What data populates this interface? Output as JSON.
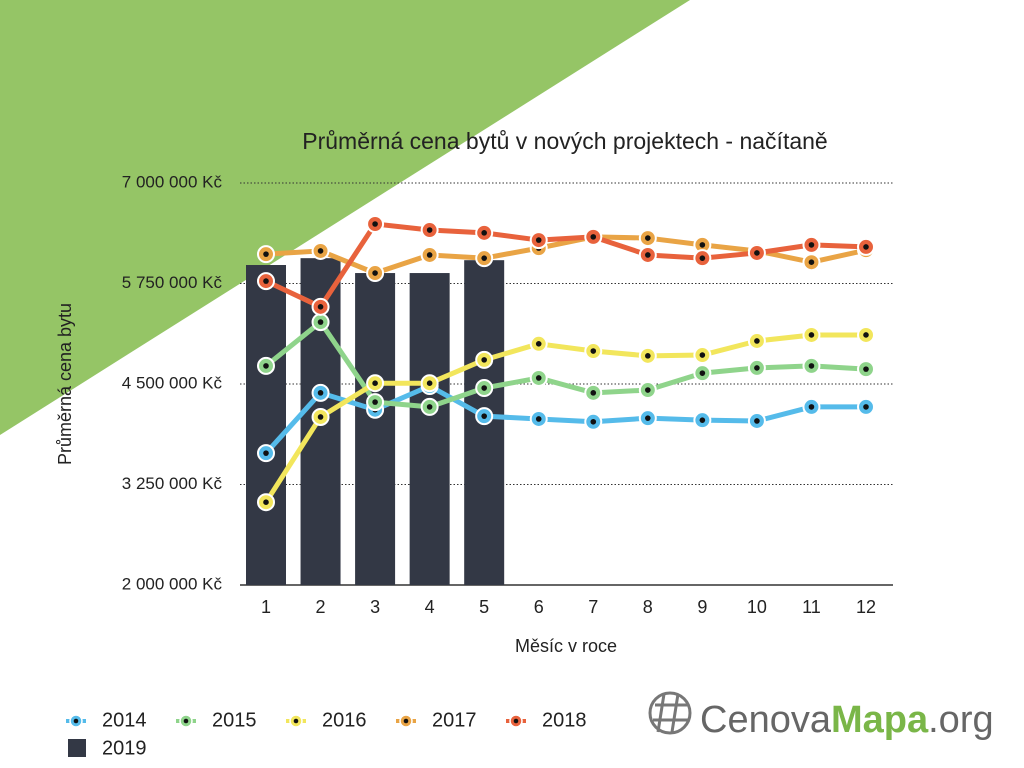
{
  "chart_data": {
    "type": "line",
    "title": "Průměrná cena bytů v nových projektech - načítaně",
    "x_label": "Měsíc v roce",
    "y_label": "Průměrná cena bytu",
    "categories": [
      1,
      2,
      3,
      4,
      5,
      6,
      7,
      8,
      9,
      10,
      11,
      12
    ],
    "ylim": [
      2000000,
      7000000
    ],
    "yticks": [
      {
        "value": 2000000,
        "label": "2 000 000 Kč"
      },
      {
        "value": 3250000,
        "label": "3 250 000 Kč"
      },
      {
        "value": 4500000,
        "label": "4 500 000 Kč"
      },
      {
        "value": 5750000,
        "label": "5 750 000 Kč"
      },
      {
        "value": 7000000,
        "label": "7 000 000 Kč"
      }
    ],
    "grid": true,
    "legend": "bottom-left",
    "series": [
      {
        "name": "2019",
        "type": "bar",
        "color": "#333845",
        "values": [
          5980000,
          6065000,
          5880000,
          5880000,
          6040000,
          null,
          null,
          null,
          null,
          null,
          null,
          null
        ]
      },
      {
        "name": "2014",
        "color": "#55bbea",
        "values": [
          3640000,
          4390000,
          4180000,
          4475000,
          4100000,
          4065000,
          4030000,
          4075000,
          4050000,
          4040000,
          4215000,
          4215000
        ]
      },
      {
        "name": "2015",
        "color": "#8fd48b",
        "values": [
          4725000,
          5270000,
          4275000,
          4215000,
          4450000,
          4575000,
          4390000,
          4425000,
          4635000,
          4700000,
          4725000,
          4685000
        ]
      },
      {
        "name": "2016",
        "color": "#f2e65c",
        "values": [
          3030000,
          4090000,
          4510000,
          4510000,
          4800000,
          5000000,
          4910000,
          4850000,
          4860000,
          5035000,
          5110000,
          5110000
        ]
      },
      {
        "name": "2017",
        "color": "#e9a445",
        "values": [
          6115000,
          6155000,
          5880000,
          6105000,
          6065000,
          6190000,
          6330000,
          6315000,
          6230000,
          6155000,
          6015000,
          6165000
        ]
      },
      {
        "name": "2018",
        "color": "#e8623c",
        "values": [
          5780000,
          5460000,
          6490000,
          6415000,
          6380000,
          6290000,
          6330000,
          6105000,
          6065000,
          6130000,
          6230000,
          6205000
        ]
      }
    ]
  },
  "logo": {
    "part1": "Cenova",
    "part2": "Mapa",
    "part3": ".org"
  }
}
